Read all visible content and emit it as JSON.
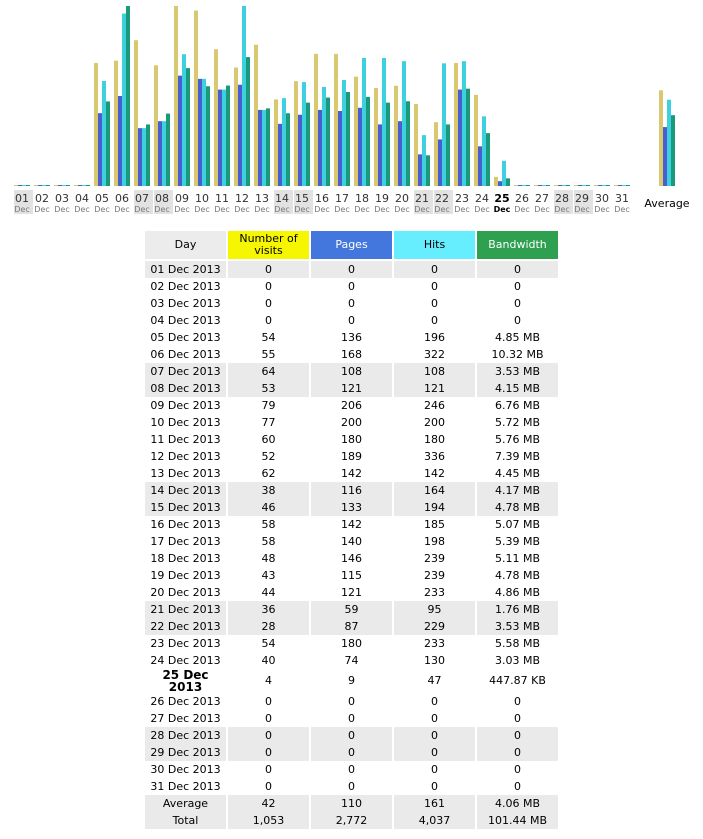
{
  "chart_data": {
    "type": "bar",
    "categories": [
      "01",
      "02",
      "03",
      "04",
      "05",
      "06",
      "07",
      "08",
      "09",
      "10",
      "11",
      "12",
      "13",
      "14",
      "15",
      "16",
      "17",
      "18",
      "19",
      "20",
      "21",
      "22",
      "23",
      "24",
      "25",
      "26",
      "27",
      "28",
      "29",
      "30",
      "31"
    ],
    "month": "Dec",
    "weekend": [
      true,
      false,
      false,
      false,
      false,
      false,
      true,
      true,
      false,
      false,
      false,
      false,
      false,
      true,
      true,
      false,
      false,
      false,
      false,
      false,
      true,
      true,
      false,
      false,
      false,
      false,
      false,
      true,
      true,
      false,
      false
    ],
    "current_day": 24,
    "series": [
      {
        "name": "Number of visits",
        "color": "#d8c870",
        "header_color": "#f6f600",
        "values": [
          0,
          0,
          0,
          0,
          54,
          55,
          64,
          53,
          79,
          77,
          60,
          52,
          62,
          38,
          46,
          58,
          58,
          48,
          43,
          44,
          36,
          28,
          54,
          40,
          4,
          0,
          0,
          0,
          0,
          0,
          0
        ]
      },
      {
        "name": "Pages",
        "color": "#4a5fcf",
        "header_color": "#4477dd",
        "values": [
          0,
          0,
          0,
          0,
          136,
          168,
          108,
          121,
          206,
          200,
          180,
          189,
          142,
          116,
          133,
          142,
          140,
          146,
          115,
          121,
          59,
          87,
          180,
          74,
          9,
          0,
          0,
          0,
          0,
          0,
          0
        ]
      },
      {
        "name": "Hits",
        "color": "#3fd0e0",
        "header_color": "#66eeff",
        "values": [
          0,
          0,
          0,
          0,
          196,
          322,
          108,
          121,
          246,
          200,
          180,
          336,
          142,
          164,
          194,
          185,
          198,
          239,
          239,
          233,
          95,
          229,
          233,
          130,
          47,
          0,
          0,
          0,
          0,
          0,
          0
        ]
      },
      {
        "name": "Bandwidth",
        "color": "#1a9a7a",
        "header_color": "#2ea050",
        "values": [
          0,
          0,
          0,
          0,
          4.85,
          10.32,
          3.53,
          4.15,
          6.76,
          5.72,
          5.76,
          7.39,
          4.45,
          4.17,
          4.78,
          5.07,
          5.39,
          5.11,
          4.78,
          4.86,
          1.76,
          3.53,
          5.58,
          3.03,
          0.4374,
          0,
          0,
          0,
          0,
          0,
          0
        ],
        "value_labels": [
          "0",
          "0",
          "0",
          "0",
          "4.85 MB",
          "10.32 MB",
          "3.53 MB",
          "4.15 MB",
          "6.76 MB",
          "5.72 MB",
          "5.76 MB",
          "7.39 MB",
          "4.45 MB",
          "4.17 MB",
          "4.78 MB",
          "5.07 MB",
          "5.39 MB",
          "5.11 MB",
          "4.78 MB",
          "4.86 MB",
          "1.76 MB",
          "3.53 MB",
          "5.58 MB",
          "3.03 MB",
          "447.87 KB",
          "0",
          "0",
          "0",
          "0",
          "0",
          "0"
        ]
      }
    ],
    "average": {
      "label": "Average",
      "values": [
        42,
        110,
        161,
        4.06
      ],
      "value_labels": [
        "42",
        "110",
        "161",
        "4.06 MB"
      ]
    }
  },
  "table": {
    "day_header": "Day",
    "dates": [
      "01 Dec 2013",
      "02 Dec 2013",
      "03 Dec 2013",
      "04 Dec 2013",
      "05 Dec 2013",
      "06 Dec 2013",
      "07 Dec 2013",
      "08 Dec 2013",
      "09 Dec 2013",
      "10 Dec 2013",
      "11 Dec 2013",
      "12 Dec 2013",
      "13 Dec 2013",
      "14 Dec 2013",
      "15 Dec 2013",
      "16 Dec 2013",
      "17 Dec 2013",
      "18 Dec 2013",
      "19 Dec 2013",
      "20 Dec 2013",
      "21 Dec 2013",
      "22 Dec 2013",
      "23 Dec 2013",
      "24 Dec 2013",
      "25 Dec 2013",
      "26 Dec 2013",
      "27 Dec 2013",
      "28 Dec 2013",
      "29 Dec 2013",
      "30 Dec 2013",
      "31 Dec 2013"
    ],
    "total": {
      "label": "Total",
      "values": [
        "1,053",
        "2,772",
        "4,037",
        "101.44 MB"
      ]
    }
  }
}
